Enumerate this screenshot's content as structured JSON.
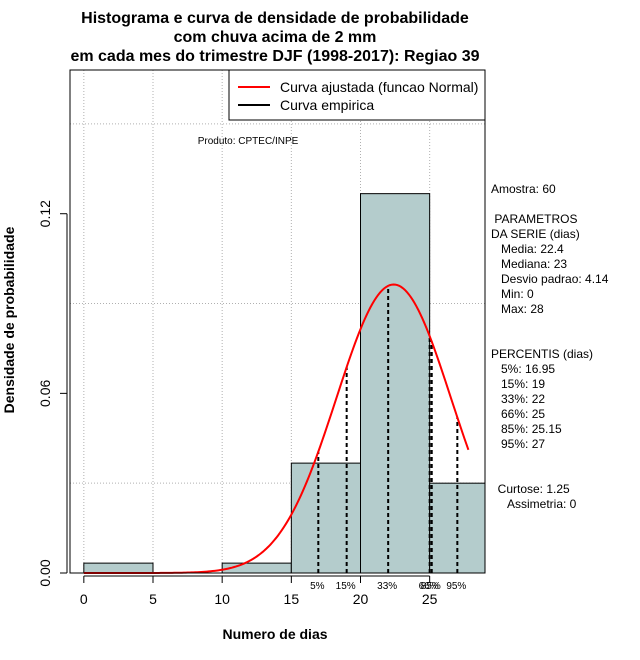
{
  "chart_data": {
    "type": "bar",
    "title_lines": [
      "Histograma e curva de densidade de probabilidade",
      "com chuva acima de 2 mm",
      "em cada mes do trimestre DJF (1998-2017): Regiao 39"
    ],
    "xlabel": "Numero de dias",
    "ylabel": "Densidade de probabilidade",
    "xlim": [
      -1,
      29
    ],
    "ylim": [
      0,
      0.168
    ],
    "x_ticks": [
      0,
      5,
      10,
      15,
      20,
      25
    ],
    "y_ticks": [
      0.0,
      0.06,
      0.12
    ],
    "y_tick_labels": [
      "0.00",
      "0.06",
      "0.12"
    ],
    "x_grid": [
      0,
      5,
      10,
      15,
      20,
      25
    ],
    "y_grid": [
      0.03,
      0.09,
      0.15
    ],
    "bins": [
      {
        "start": 0,
        "end": 5,
        "density": 0.0033
      },
      {
        "start": 5,
        "end": 10,
        "density": 0.0
      },
      {
        "start": 10,
        "end": 15,
        "density": 0.0033
      },
      {
        "start": 15,
        "end": 20,
        "density": 0.0367
      },
      {
        "start": 20,
        "end": 25,
        "density": 0.1267
      },
      {
        "start": 25,
        "end": 30,
        "density": 0.03
      }
    ],
    "normal_curve": {
      "mean": 22.4,
      "sd": 4.14,
      "x_range": [
        0,
        27.8
      ],
      "color": "#ff0000"
    },
    "bar_fill": "#b4cccc",
    "legend": [
      {
        "label": "Curva ajustada (funcao Normal)",
        "color": "#ff0000"
      },
      {
        "label": "Curva empirica",
        "color": "#000000"
      }
    ],
    "percentile_lines": [
      {
        "x": 16.95,
        "label": "5%"
      },
      {
        "x": 19,
        "label": "15%"
      },
      {
        "x": 22,
        "label": "33%"
      },
      {
        "x": 25,
        "label": "66%"
      },
      {
        "x": 25.15,
        "label": "85%"
      },
      {
        "x": 27,
        "label": "95%"
      }
    ],
    "product_note": "Produto: CPTEC/INPE",
    "side_text": [
      "Amostra: 60",
      "",
      " PARAMETROS",
      "DA SERIE (dias)",
      "   Media: 22.4",
      "   Mediana: 23",
      "   Desvio padrao: 4.14",
      "   Min: 0",
      "   Max: 28",
      "",
      "",
      "PERCENTIS (dias)",
      "   5%: 16.95",
      "   15%: 19",
      "   33%: 22",
      "   66%: 25",
      "   85%: 25.15",
      "   95%: 27",
      "",
      "",
      "  Curtose: 1.25",
      "     Assimetria: 0"
    ]
  }
}
